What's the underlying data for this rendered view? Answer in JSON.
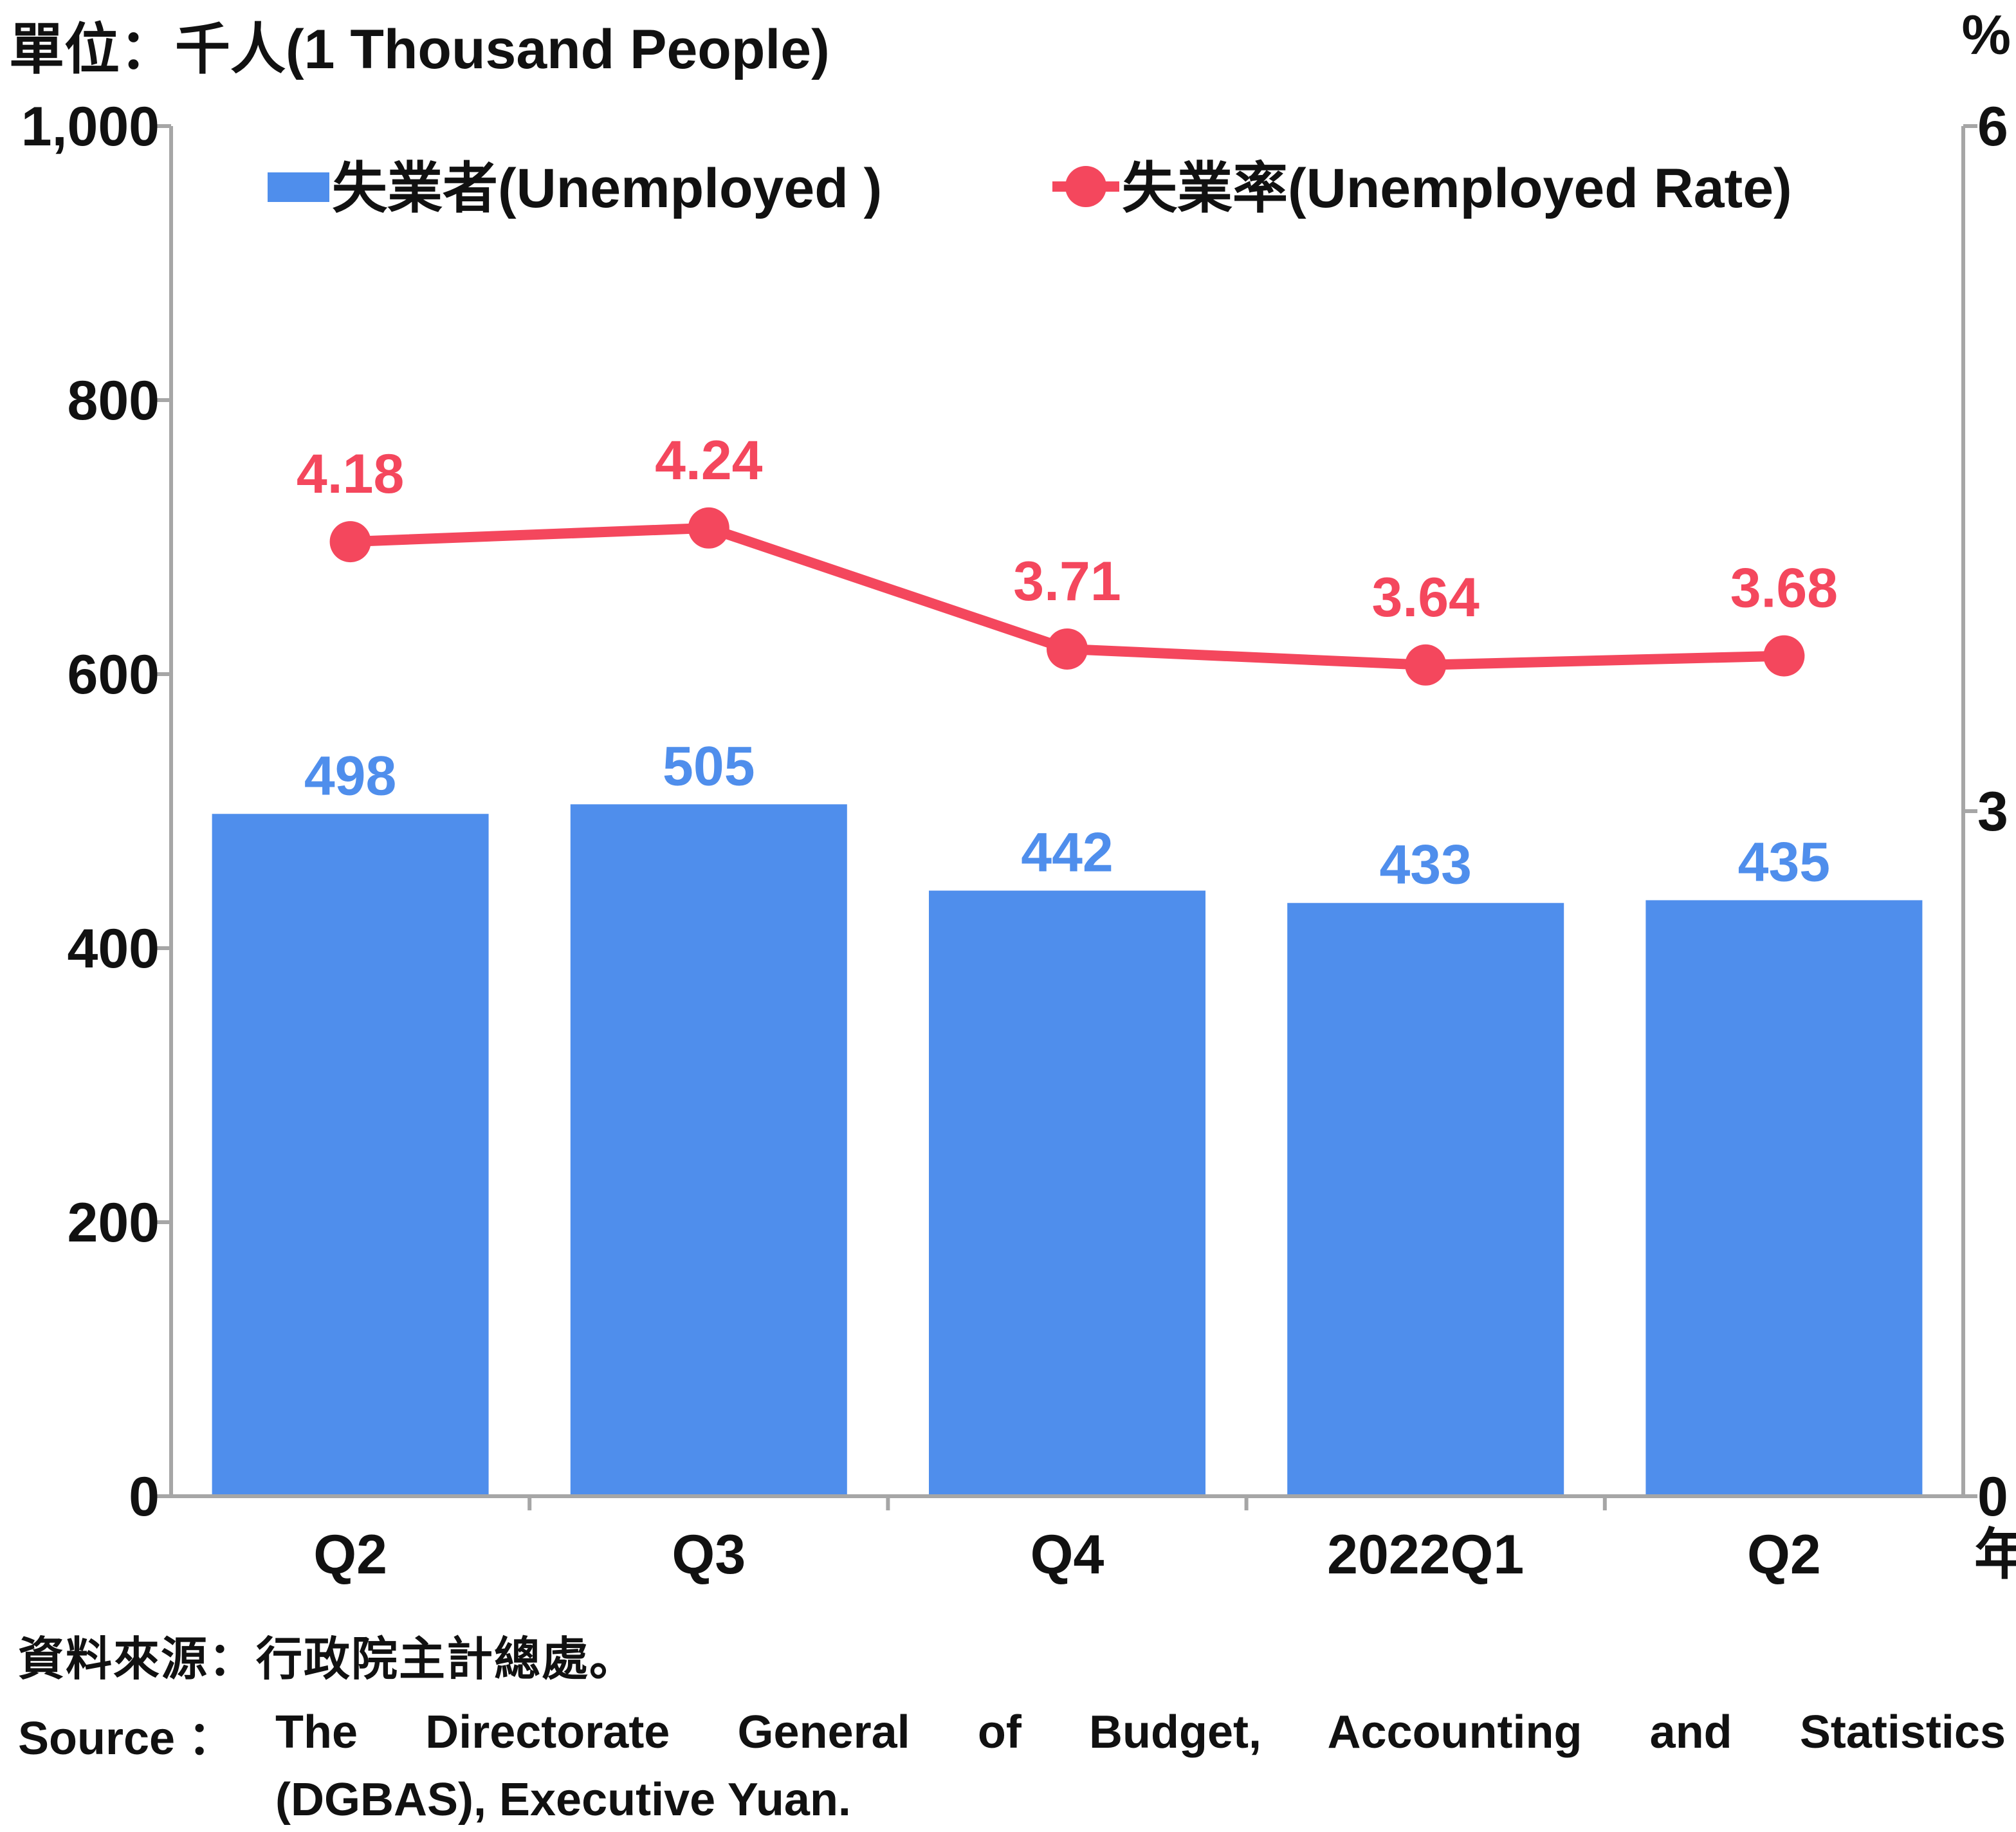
{
  "unit_left": "單位：千人(1 Thousand People)",
  "unit_right": "%",
  "year_suffix": "年",
  "source": {
    "zh": "資料來源：行政院主計總處。",
    "en_label": "Source ：",
    "en_line1": "The Directorate General of Budget, Accounting and Statistics",
    "en_line2": "(DGBAS), Executive Yuan."
  },
  "colors": {
    "bar": "#4f8eec",
    "line": "#f4475d",
    "axis": "#a6a6a6",
    "text": "#111111"
  },
  "chart_data": {
    "type": "bar+line",
    "categories": [
      "Q2",
      "Q3",
      "Q4",
      "2022Q1",
      "Q2"
    ],
    "series": [
      {
        "name": "失業者(Unemployed )",
        "type": "bar",
        "axis": "left",
        "values": [
          498,
          505,
          442,
          433,
          435
        ]
      },
      {
        "name": "失業率(Unemployed Rate)",
        "type": "line",
        "axis": "right",
        "values": [
          4.18,
          4.24,
          3.71,
          3.64,
          3.68
        ]
      }
    ],
    "y_left": {
      "ylim": [
        0,
        1000
      ],
      "ticks": [
        0,
        200,
        400,
        600,
        800,
        1000
      ],
      "tick_labels": [
        "0",
        "200",
        "400",
        "600",
        "800",
        "1,000"
      ]
    },
    "y_right": {
      "ylim": [
        0,
        6
      ],
      "ticks": [
        0,
        3,
        6
      ],
      "tick_labels": [
        "0",
        "3",
        "6"
      ]
    },
    "bar_labels": [
      "498",
      "505",
      "442",
      "433",
      "435"
    ],
    "line_labels": [
      "4.18",
      "4.24",
      "3.71",
      "3.64",
      "3.68"
    ],
    "legend_position": "top",
    "grid": false
  }
}
